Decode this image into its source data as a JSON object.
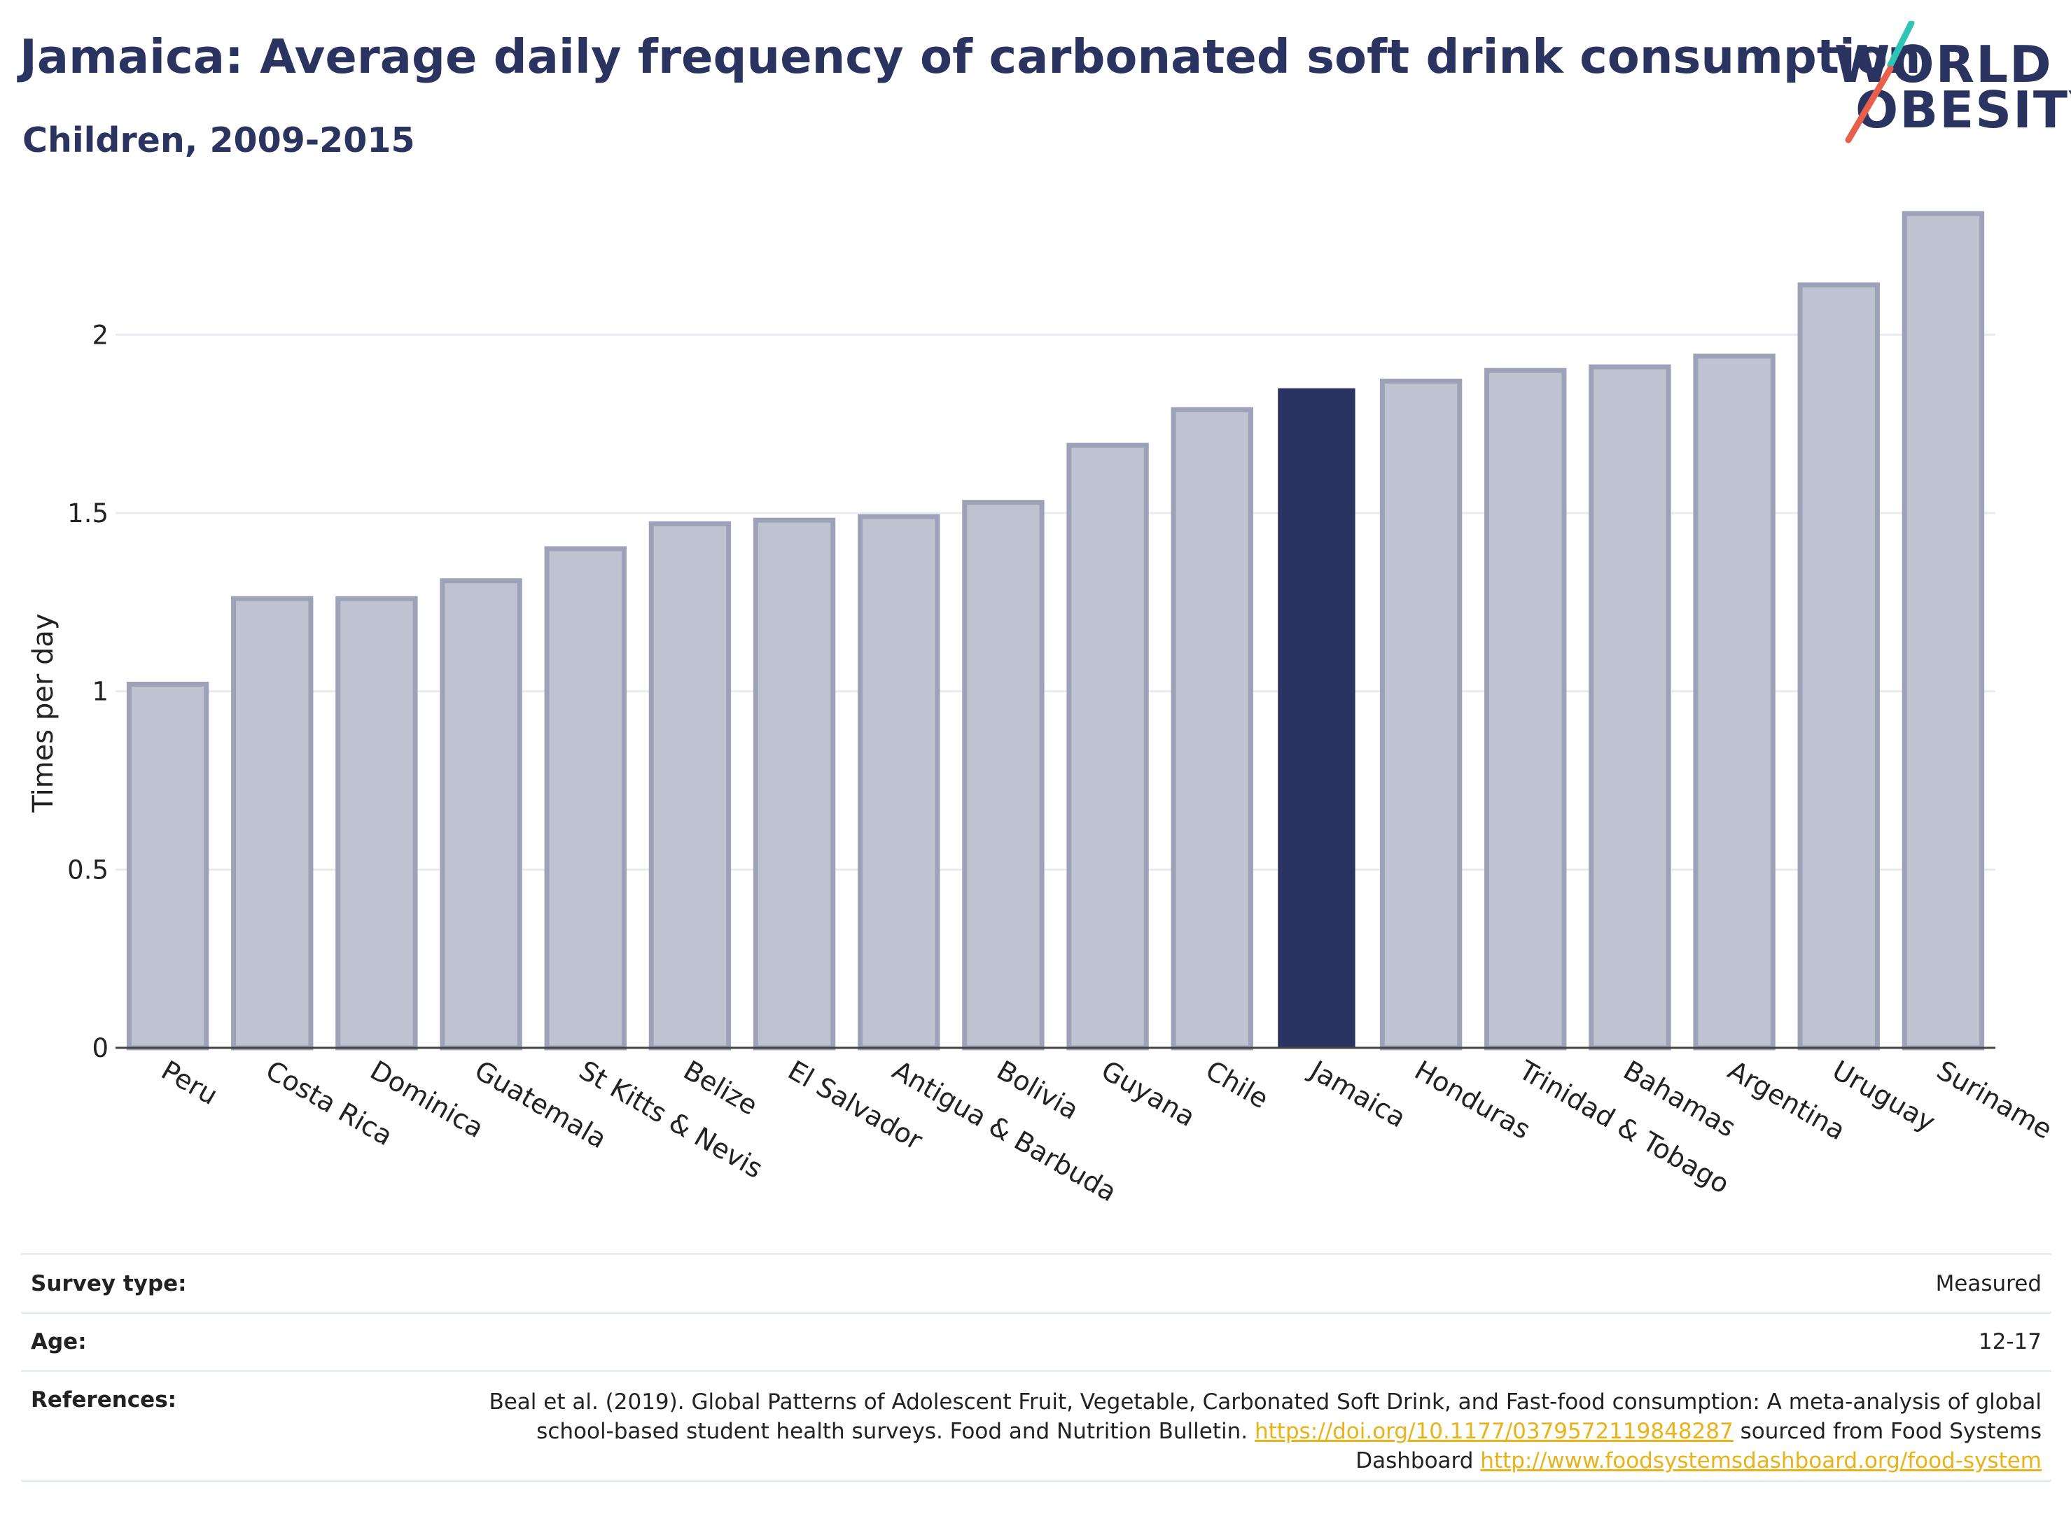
{
  "header": {
    "title": "Jamaica: Average daily frequency of carbonated soft drink consumption",
    "subtitle": "Children, 2009-2015"
  },
  "logo": {
    "line1": "WORLD",
    "line2": "OBESITY",
    "brand_color": "#2b3460",
    "slash_colors": [
      "#2ec4b6",
      "#e8604c"
    ]
  },
  "colors": {
    "highlight_bar": "#2b3460",
    "other_bar_fill": "#bfc2d0",
    "other_bar_stroke": "#9da2b9",
    "gridline": "#e8ecef",
    "link": "#e8b21a"
  },
  "chart_data": {
    "type": "bar",
    "title": "Jamaica: Average daily frequency of carbonated soft drink consumption",
    "subtitle": "Children, 2009-2015",
    "xlabel": "",
    "ylabel": "Times per day",
    "ylim": [
      0,
      2.35
    ],
    "yticks": [
      0,
      0.5,
      1,
      1.5,
      2
    ],
    "ytick_labels": [
      "0",
      "0.5",
      "1",
      "1.5",
      "2"
    ],
    "grid": true,
    "highlight": "Jamaica",
    "categories": [
      "Peru",
      "Costa Rica",
      "Dominica",
      "Guatemala",
      "St Kitts & Nevis",
      "Belize",
      "El Salvador",
      "Antigua & Barbuda",
      "Bolivia",
      "Guyana",
      "Chile",
      "Jamaica",
      "Honduras",
      "Trinidad & Tobago",
      "Bahamas",
      "Argentina",
      "Uruguay",
      "Suriname"
    ],
    "values": [
      1.02,
      1.26,
      1.26,
      1.31,
      1.4,
      1.47,
      1.48,
      1.49,
      1.53,
      1.69,
      1.79,
      1.85,
      1.87,
      1.9,
      1.91,
      1.94,
      2.14,
      2.34
    ]
  },
  "info": {
    "survey_type_label": "Survey type:",
    "survey_type_value": "Measured",
    "age_label": "Age:",
    "age_value": "12-17",
    "references_label": "References:",
    "ref_text_1": "Beal et al. (2019). Global Patterns of Adolescent Fruit, Vegetable, Carbonated Soft Drink, and Fast-food consumption: A meta-analysis of global school-based student health surveys. Food and Nutrition Bulletin. ",
    "ref_link_1": "https://doi.org/10.1177/0379572119848287",
    "ref_text_2": " sourced from Food Systems Dashboard ",
    "ref_link_2": "http://www.foodsystemsdashboard.org/food-system"
  }
}
